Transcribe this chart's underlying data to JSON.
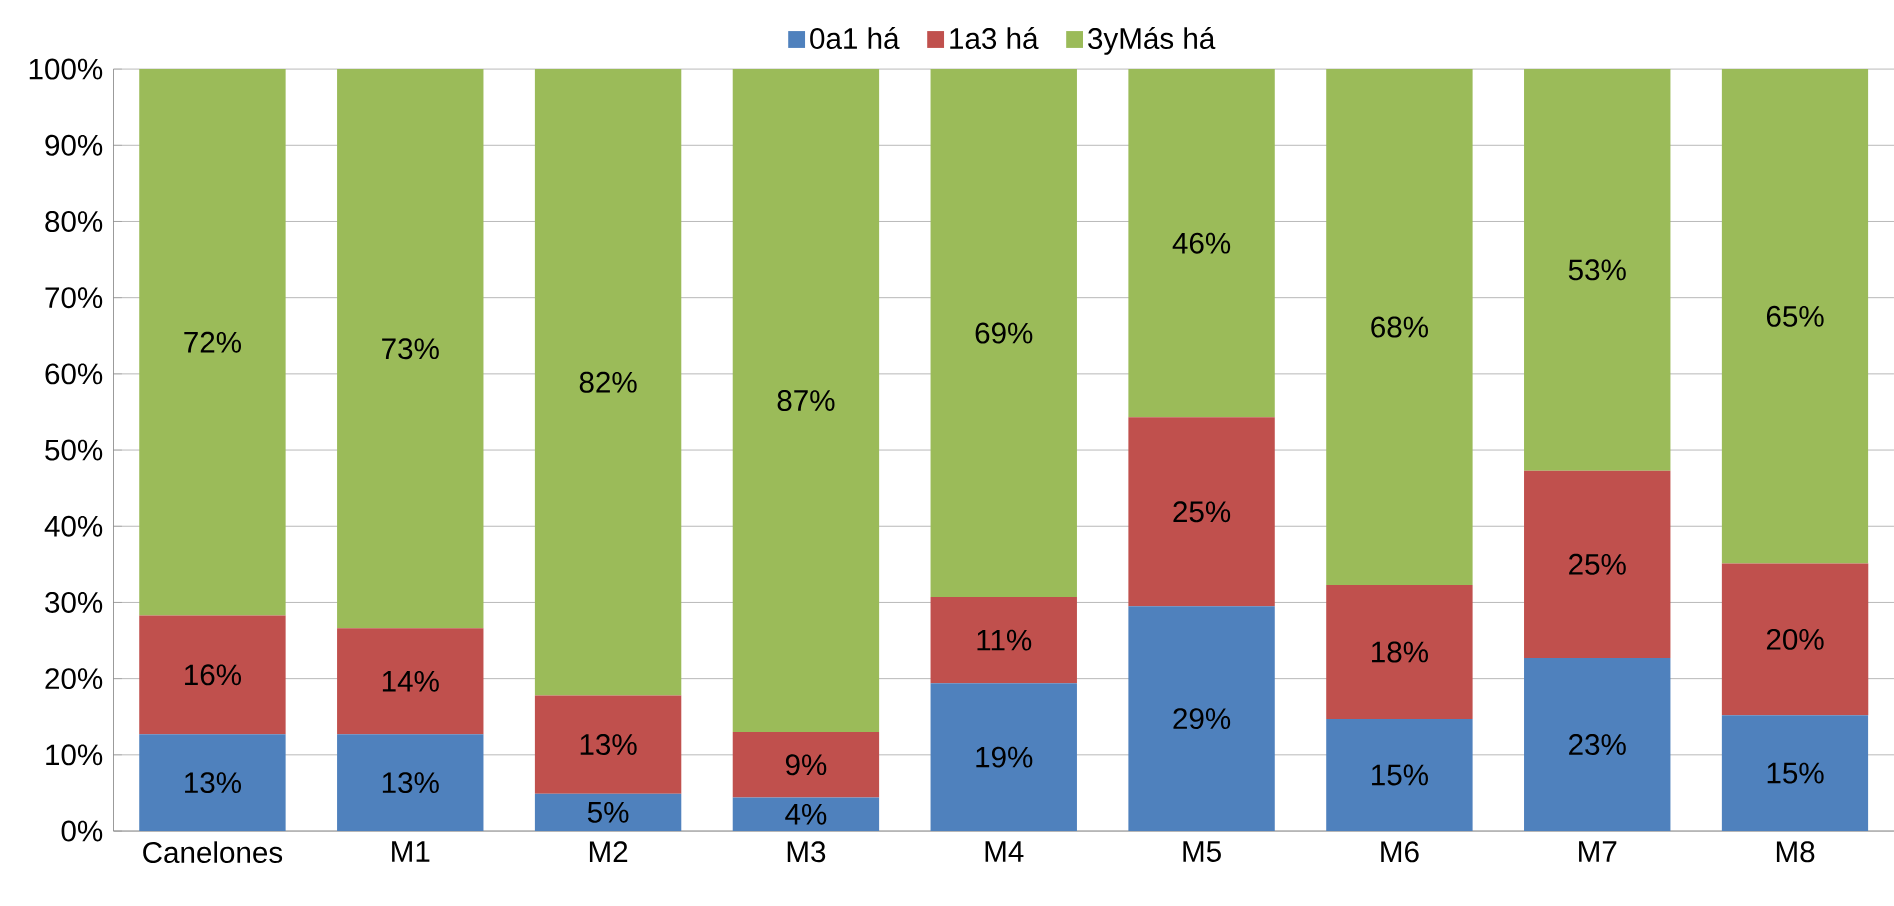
{
  "chart_data": {
    "type": "bar",
    "stacked": true,
    "categories": [
      "Canelones",
      "M1",
      "M2",
      "M3",
      "M4",
      "M5",
      "M6",
      "M7",
      "M8"
    ],
    "series": [
      {
        "name": "0a1 há",
        "color": "#4f81bd",
        "values": [
          12.7,
          12.7,
          4.9,
          4.4,
          19.4,
          29.5,
          14.7,
          22.7,
          15.2
        ],
        "value_labels": [
          "13%",
          "13%",
          "5%",
          "4%",
          "19%",
          "29%",
          "15%",
          "23%",
          "15%"
        ]
      },
      {
        "name": "1a3 há",
        "color": "#c0504d",
        "values": [
          15.6,
          13.9,
          12.9,
          8.6,
          11.3,
          24.8,
          17.6,
          24.6,
          19.9
        ],
        "value_labels": [
          "16%",
          "14%",
          "13%",
          "9%",
          "11%",
          "25%",
          "18%",
          "25%",
          "20%"
        ]
      },
      {
        "name": "3yMás há",
        "color": "#9bbb59",
        "values": [
          71.7,
          73.4,
          82.2,
          87.0,
          69.3,
          45.7,
          67.7,
          52.7,
          64.9
        ],
        "value_labels": [
          "72%",
          "73%",
          "82%",
          "87%",
          "69%",
          "46%",
          "68%",
          "53%",
          "65%"
        ]
      }
    ],
    "ylim": [
      0,
      100
    ],
    "yticks": [
      {
        "value": 0,
        "label": "0%"
      },
      {
        "value": 10,
        "label": "10%"
      },
      {
        "value": 20,
        "label": "20%"
      },
      {
        "value": 30,
        "label": "30%"
      },
      {
        "value": 40,
        "label": "40%"
      },
      {
        "value": 50,
        "label": "50%"
      },
      {
        "value": 60,
        "label": "60%"
      },
      {
        "value": 70,
        "label": "70%"
      },
      {
        "value": 80,
        "label": "80%"
      },
      {
        "value": 90,
        "label": "90%"
      },
      {
        "value": 100,
        "label": "100%"
      }
    ],
    "grid": "y",
    "legend": "top"
  }
}
